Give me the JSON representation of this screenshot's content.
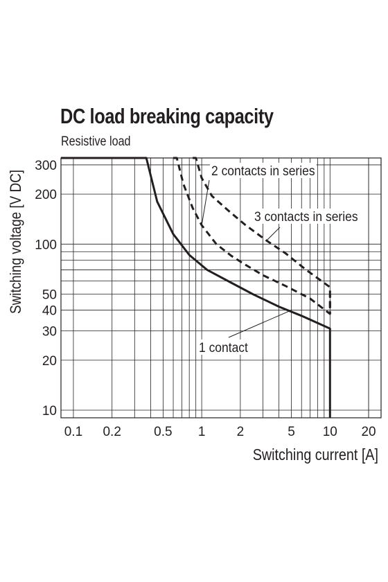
{
  "chart_data": {
    "type": "line",
    "title": "DC load breaking capacity",
    "subtitle": "Resistive load",
    "xlabel": "Switching current [A]",
    "ylabel": "Switching voltage [V DC]",
    "xscale": "log",
    "yscale": "log",
    "xlim": [
      0.08,
      25
    ],
    "ylim": [
      9,
      330
    ],
    "xticks": [
      {
        "v": 0.1,
        "label": "0.1"
      },
      {
        "v": 0.2,
        "label": "0.2"
      },
      {
        "v": 0.5,
        "label": "0.5"
      },
      {
        "v": 1,
        "label": "1"
      },
      {
        "v": 2,
        "label": "2"
      },
      {
        "v": 5,
        "label": "5"
      },
      {
        "v": 10,
        "label": "10"
      },
      {
        "v": 20,
        "label": "20"
      }
    ],
    "yticks": [
      {
        "v": 10,
        "label": "10"
      },
      {
        "v": 20,
        "label": "20"
      },
      {
        "v": 30,
        "label": "30"
      },
      {
        "v": 40,
        "label": "40"
      },
      {
        "v": 50,
        "label": "50"
      },
      {
        "v": 100,
        "label": "100"
      },
      {
        "v": 200,
        "label": "200"
      },
      {
        "v": 300,
        "label": "300"
      }
    ],
    "grid": true,
    "series": [
      {
        "name": "1 contact",
        "style": "solid",
        "x": [
          0.08,
          0.37,
          0.45,
          0.6,
          0.8,
          1.1,
          1.6,
          2.5,
          4,
          6,
          10,
          10
        ],
        "y": [
          330,
          330,
          180,
          115,
          86,
          70,
          60,
          50,
          42,
          37,
          31,
          9
        ]
      },
      {
        "name": "2 contacts in series",
        "style": "dashed",
        "x": [
          0.6,
          0.64,
          0.72,
          0.85,
          1.0,
          1.3,
          1.7,
          2.2,
          3.0,
          4.5,
          7.0,
          10,
          10
        ],
        "y": [
          330,
          330,
          230,
          165,
          130,
          100,
          85,
          75,
          65,
          56,
          47,
          38,
          50
        ]
      },
      {
        "name": "3 contacts in series",
        "style": "dashed",
        "x": [
          0.85,
          0.9,
          1.0,
          1.2,
          1.6,
          2.2,
          3.2,
          4.5,
          6.5,
          10,
          10
        ],
        "y": [
          330,
          330,
          250,
          195,
          160,
          130,
          105,
          88,
          70,
          55,
          38
        ]
      }
    ],
    "annotations": [
      {
        "label": "2 contacts in series",
        "series": 1
      },
      {
        "label": "3 contacts in series",
        "series": 2
      },
      {
        "label": "1 contact",
        "series": 0
      }
    ]
  }
}
